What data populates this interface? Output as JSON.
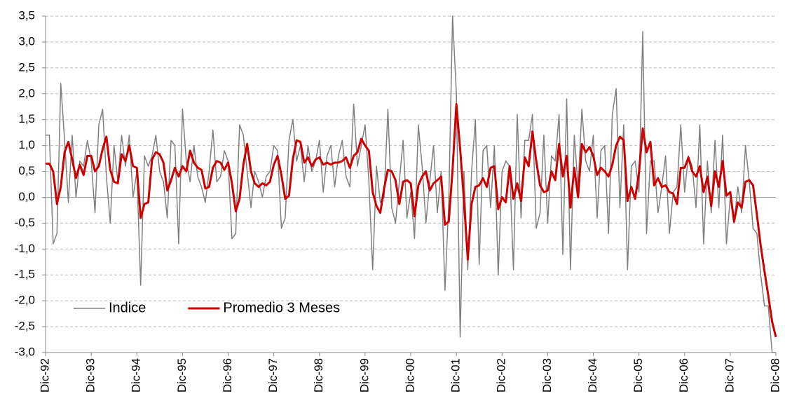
{
  "chart_data": {
    "type": "line",
    "categories": [
      "Dic-92",
      null,
      null,
      null,
      null,
      null,
      null,
      null,
      null,
      null,
      null,
      null,
      "Dic-93",
      null,
      null,
      null,
      null,
      null,
      null,
      null,
      null,
      null,
      null,
      null,
      "Dic-94",
      null,
      null,
      null,
      null,
      null,
      null,
      null,
      null,
      null,
      null,
      null,
      "Dic-95",
      null,
      null,
      null,
      null,
      null,
      null,
      null,
      null,
      null,
      null,
      null,
      "Dic-96",
      null,
      null,
      null,
      null,
      null,
      null,
      null,
      null,
      null,
      null,
      null,
      "Dic-97",
      null,
      null,
      null,
      null,
      null,
      null,
      null,
      null,
      null,
      null,
      null,
      "Dic-98",
      null,
      null,
      null,
      null,
      null,
      null,
      null,
      null,
      null,
      null,
      null,
      "Dic-99",
      null,
      null,
      null,
      null,
      null,
      null,
      null,
      null,
      null,
      null,
      null,
      "Dic-00",
      null,
      null,
      null,
      null,
      null,
      null,
      null,
      null,
      null,
      null,
      null,
      "Dic-01",
      null,
      null,
      null,
      null,
      null,
      null,
      null,
      null,
      null,
      null,
      null,
      "Dic-02",
      null,
      null,
      null,
      null,
      null,
      null,
      null,
      null,
      null,
      null,
      null,
      "Dic-03",
      null,
      null,
      null,
      null,
      null,
      null,
      null,
      null,
      null,
      null,
      null,
      "Dic-04",
      null,
      null,
      null,
      null,
      null,
      null,
      null,
      null,
      null,
      null,
      null,
      "Dic-05",
      null,
      null,
      null,
      null,
      null,
      null,
      null,
      null,
      null,
      null,
      null,
      "Dic-06",
      null,
      null,
      null,
      null,
      null,
      null,
      null,
      null,
      null,
      null,
      null,
      "Dic-07",
      null,
      null,
      null,
      null,
      null,
      null,
      null,
      null,
      null,
      null,
      null,
      "Dic-08"
    ],
    "series": [
      {
        "name": "Indice",
        "color": "#808080",
        "values": [
          1.2,
          1.2,
          -0.9,
          -0.7,
          2.2,
          1.1,
          -0.1,
          1.2,
          0.0,
          0.7,
          0.6,
          1.1,
          0.7,
          -0.3,
          1.4,
          1.7,
          0.4,
          -0.5,
          1.0,
          0.3,
          1.2,
          0.6,
          1.2,
          0.0,
          0.5,
          -1.7,
          0.8,
          0.6,
          0.8,
          1.2,
          0.5,
          0.3,
          -0.4,
          1.1,
          1.0,
          -0.9,
          1.7,
          0.7,
          0.3,
          1.0,
          0.4,
          0.2,
          -0.1,
          0.5,
          1.3,
          0.3,
          0.4,
          0.9,
          0.7,
          -0.8,
          -0.7,
          1.4,
          1.2,
          0.5,
          -0.2,
          0.5,
          0.3,
          0.0,
          0.4,
          0.5,
          1.0,
          0.9,
          -0.6,
          -0.4,
          1.1,
          1.5,
          0.7,
          1.0,
          0.3,
          1.0,
          0.5,
          0.7,
          1.1,
          0.1,
          0.8,
          1.0,
          0.2,
          0.8,
          1.1,
          0.4,
          0.2,
          1.8,
          0.6,
          1.0,
          1.4,
          0.3,
          -1.4,
          0.6,
          -0.1,
          0.0,
          1.7,
          -0.2,
          -0.5,
          0.3,
          1.1,
          -0.4,
          0.1,
          -0.8,
          1.4,
          0.6,
          -0.5,
          0.3,
          1.0,
          -0.3,
          0.5,
          -1.8,
          -0.1,
          3.5,
          2.0,
          -2.7,
          0.5,
          -1.4,
          0.5,
          1.5,
          -1.3,
          0.9,
          1.0,
          -0.2,
          1.0,
          -1.5,
          0.5,
          0.7,
          0.6,
          -1.4,
          1.6,
          -0.4,
          1.1,
          1.1,
          1.6,
          -0.6,
          -0.3,
          1.2,
          -0.5,
          0.8,
          0.7,
          1.6,
          -1.1,
          1.9,
          -1.4,
          1.2,
          0.2,
          1.7,
          0.7,
          0.5,
          1.2,
          -0.4,
          0.9,
          1.0,
          -0.7,
          1.6,
          2.1,
          -0.2,
          1.4,
          -1.4,
          0.6,
          0.7,
          0.1,
          3.2,
          -0.7,
          0.7,
          0.7,
          -0.3,
          0.2,
          0.8,
          -0.7,
          0.1,
          0.2,
          1.4,
          0.1,
          0.8,
          0.6,
          -0.2,
          1.4,
          -0.9,
          0.7,
          -0.3,
          1.1,
          -0.2,
          1.2,
          -0.9,
          0.0,
          -0.5,
          0.2,
          -0.3,
          1.0,
          0.3,
          -0.6,
          -0.7,
          -1.5,
          -2.1,
          -2.1,
          -3.0,
          -3.0
        ]
      },
      {
        "name": "Promedio 3 Meses",
        "color": "#cc0000",
        "values": [
          0.65,
          0.65,
          0.5,
          -0.13,
          0.2,
          0.87,
          1.07,
          0.73,
          0.37,
          0.63,
          0.43,
          0.8,
          0.8,
          0.5,
          0.6,
          0.93,
          1.17,
          0.53,
          0.3,
          0.27,
          0.83,
          0.7,
          1.0,
          0.6,
          0.57,
          -0.4,
          -0.13,
          -0.1,
          0.73,
          0.87,
          0.83,
          0.67,
          0.13,
          0.33,
          0.57,
          0.4,
          0.6,
          0.5,
          0.9,
          0.67,
          0.57,
          0.53,
          0.17,
          0.2,
          0.57,
          0.7,
          0.67,
          0.53,
          0.67,
          0.27,
          -0.27,
          -0.03,
          0.63,
          1.03,
          0.5,
          0.27,
          0.2,
          0.27,
          0.23,
          0.3,
          0.63,
          0.8,
          0.43,
          -0.03,
          0.03,
          0.73,
          1.1,
          1.07,
          0.67,
          0.77,
          0.6,
          0.73,
          0.77,
          0.63,
          0.67,
          0.63,
          0.67,
          0.67,
          0.7,
          0.77,
          0.57,
          0.8,
          0.87,
          1.13,
          1.0,
          0.9,
          0.1,
          -0.17,
          -0.3,
          0.17,
          0.53,
          0.5,
          0.33,
          -0.13,
          0.3,
          0.33,
          0.27,
          -0.37,
          0.23,
          0.4,
          0.5,
          0.13,
          0.27,
          0.33,
          0.4,
          -0.53,
          -0.47,
          0.53,
          1.8,
          0.93,
          -0.07,
          -1.2,
          -0.13,
          0.2,
          0.23,
          0.37,
          0.2,
          0.57,
          0.6,
          -0.23,
          0,
          -0.1,
          0.6,
          -0.03,
          0.27,
          -0.07,
          0.77,
          0.6,
          1.27,
          0.7,
          0.23,
          0.1,
          0.13,
          0.5,
          0.33,
          1.03,
          0.4,
          0.8,
          -0.2,
          0.57,
          0,
          1.03,
          0.87,
          0.97,
          0.8,
          0.43,
          0.57,
          0.5,
          0.4,
          0.63,
          1.0,
          1.17,
          1.1,
          -0.07,
          0.2,
          -0.03,
          0.47,
          1.33,
          0.87,
          1.07,
          0.23,
          0.37,
          0.2,
          0.23,
          0.1,
          0.07,
          -0.13,
          0.57,
          0.57,
          0.77,
          0.5,
          0.4,
          0.6,
          0.1,
          0.4,
          -0.17,
          0.5,
          0.2,
          0.7,
          0.03,
          0.1,
          -0.47,
          -0.1,
          -0.2,
          0.3,
          0.33,
          0.23,
          -0.33,
          -0.93,
          -1.43,
          -1.9,
          -2.4,
          -2.7
        ]
      }
    ],
    "ylim": [
      -3.0,
      3.5
    ],
    "yticks": [
      {
        "value": 3.5,
        "label": "3,5"
      },
      {
        "value": 3.0,
        "label": "3,0"
      },
      {
        "value": 2.5,
        "label": "2,5"
      },
      {
        "value": 2.0,
        "label": "2,0"
      },
      {
        "value": 1.5,
        "label": "1,5"
      },
      {
        "value": 1.0,
        "label": "1,0"
      },
      {
        "value": 0.5,
        "label": "0,5"
      },
      {
        "value": 0.0,
        "label": "0,0"
      },
      {
        "value": -0.5,
        "label": "-0,5"
      },
      {
        "value": -1.0,
        "label": "-1,0"
      },
      {
        "value": -1.5,
        "label": "-1,5"
      },
      {
        "value": -2.0,
        "label": "-2,0"
      },
      {
        "value": -2.5,
        "label": "-2,5"
      },
      {
        "value": -3.0,
        "label": "-3,0"
      }
    ],
    "grid": true,
    "legend": "lower left"
  }
}
